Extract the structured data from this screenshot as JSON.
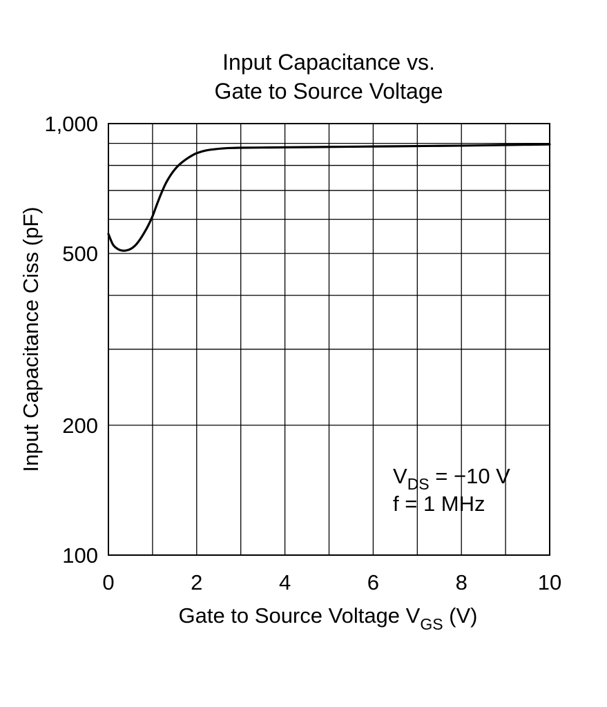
{
  "chart_data": {
    "type": "line",
    "title_lines": [
      "Input Capacitance vs.",
      "Gate to Source Voltage"
    ],
    "xlabel": {
      "main": "Gate to Source Voltage  V",
      "sub": "GS",
      "unit": "  (V)"
    },
    "ylabel": "Input Capacitance  Ciss  (pF)",
    "xlim": [
      0,
      10
    ],
    "ylim": [
      100,
      1000
    ],
    "yscale": "log",
    "grid": true,
    "x_gridlines": [
      1,
      2,
      3,
      4,
      5,
      6,
      7,
      8,
      9
    ],
    "y_gridlines": [
      200,
      300,
      400,
      500,
      600,
      700,
      800,
      900
    ],
    "x_ticks": [
      {
        "value": 0,
        "label": "0"
      },
      {
        "value": 2,
        "label": "2"
      },
      {
        "value": 4,
        "label": "4"
      },
      {
        "value": 6,
        "label": "6"
      },
      {
        "value": 8,
        "label": "8"
      },
      {
        "value": 10,
        "label": "10"
      }
    ],
    "y_ticks": [
      {
        "value": 100,
        "label": "100"
      },
      {
        "value": 200,
        "label": "200"
      },
      {
        "value": 500,
        "label": "500"
      },
      {
        "value": 1000,
        "label": "1,000"
      }
    ],
    "annotations": [
      {
        "main": "V",
        "sub": "DS",
        "rest": " = −10 V"
      },
      {
        "main": "f = 1 MHz",
        "sub": "",
        "rest": ""
      }
    ],
    "series": [
      {
        "x": [
          0,
          0.1,
          0.2,
          0.3,
          0.4,
          0.5,
          0.6,
          0.7,
          0.8,
          0.9,
          1.0,
          1.1,
          1.2,
          1.3,
          1.4,
          1.5,
          1.6,
          1.7,
          1.8,
          1.9,
          2.0,
          2.2,
          2.4,
          2.6,
          2.8,
          3.0,
          3.5,
          4.0,
          5.0,
          6.0,
          7.0,
          8.0,
          9.0,
          10.0
        ],
        "y": [
          555,
          525,
          513,
          508,
          508,
          512,
          521,
          536,
          556,
          580,
          610,
          650,
          690,
          727,
          757,
          782,
          802,
          818,
          832,
          844,
          854,
          866,
          872,
          876,
          878,
          879,
          880,
          881,
          883,
          885,
          887,
          889,
          892,
          895
        ]
      }
    ]
  }
}
